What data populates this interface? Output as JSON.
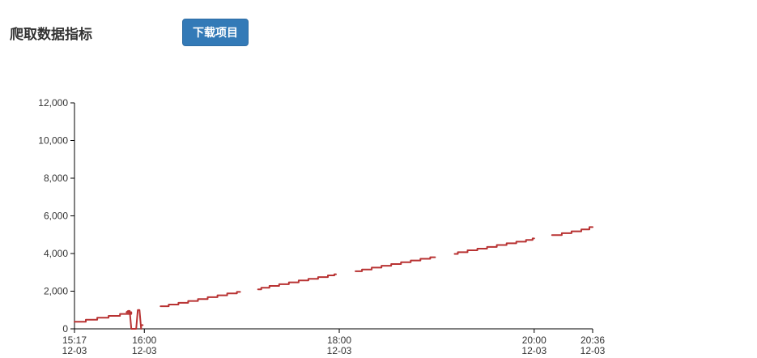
{
  "header": {
    "title": "爬取数据指标",
    "download_label": "下载项目"
  },
  "colors": {
    "accent": "#337ab7",
    "series": "#b83232"
  },
  "chart_data": {
    "type": "line",
    "title": "",
    "xlabel": "",
    "ylabel": "",
    "x_range_minutes": [
      0,
      319
    ],
    "ylim": [
      0,
      12000
    ],
    "y_ticks": [
      {
        "value": 0,
        "label": "0"
      },
      {
        "value": 2000,
        "label": "2,000"
      },
      {
        "value": 4000,
        "label": "4,000"
      },
      {
        "value": 6000,
        "label": "6,000"
      },
      {
        "value": 8000,
        "label": "8,000"
      },
      {
        "value": 10000,
        "label": "10,000"
      },
      {
        "value": 12000,
        "label": "12,000"
      }
    ],
    "x_ticks": [
      {
        "t": 0,
        "time": "15:17",
        "date": "12-03"
      },
      {
        "t": 43,
        "time": "16:00",
        "date": "12-03"
      },
      {
        "t": 163,
        "time": "18:00",
        "date": "12-03"
      },
      {
        "t": 283,
        "time": "20:00",
        "date": "12-03"
      },
      {
        "t": 319,
        "time": "20:36",
        "date": "12-03"
      }
    ],
    "segments": [
      [
        [
          0,
          380
        ],
        [
          7,
          380
        ],
        [
          7,
          480
        ],
        [
          14,
          480
        ],
        [
          14,
          590
        ],
        [
          21,
          590
        ],
        [
          21,
          690
        ],
        [
          28,
          690
        ],
        [
          28,
          790
        ],
        [
          35,
          790
        ],
        [
          35,
          880
        ],
        [
          32,
          880
        ],
        [
          33,
          950
        ],
        [
          34,
          950
        ],
        [
          35,
          0
        ],
        [
          38,
          0
        ],
        [
          39,
          1000
        ],
        [
          40,
          1000
        ],
        [
          41,
          0
        ],
        [
          41,
          200
        ],
        [
          42,
          200
        ]
      ],
      [
        [
          53,
          1200
        ],
        [
          58,
          1200
        ],
        [
          58,
          1290
        ],
        [
          64,
          1290
        ],
        [
          64,
          1380
        ],
        [
          70,
          1380
        ],
        [
          70,
          1480
        ],
        [
          76,
          1480
        ],
        [
          76,
          1580
        ],
        [
          82,
          1580
        ],
        [
          82,
          1680
        ],
        [
          88,
          1680
        ],
        [
          88,
          1780
        ],
        [
          94,
          1780
        ],
        [
          94,
          1880
        ],
        [
          100,
          1880
        ],
        [
          100,
          1960
        ],
        [
          102,
          1960
        ]
      ],
      [
        [
          113,
          2100
        ],
        [
          115,
          2100
        ],
        [
          115,
          2180
        ],
        [
          120,
          2180
        ],
        [
          120,
          2280
        ],
        [
          126,
          2280
        ],
        [
          126,
          2370
        ],
        [
          132,
          2370
        ],
        [
          132,
          2470
        ],
        [
          138,
          2470
        ],
        [
          138,
          2570
        ],
        [
          144,
          2570
        ],
        [
          144,
          2660
        ],
        [
          150,
          2660
        ],
        [
          150,
          2750
        ],
        [
          156,
          2750
        ],
        [
          156,
          2840
        ],
        [
          160,
          2840
        ],
        [
          160,
          2900
        ],
        [
          161,
          2900
        ]
      ],
      [
        [
          173,
          3060
        ],
        [
          177,
          3060
        ],
        [
          177,
          3150
        ],
        [
          183,
          3150
        ],
        [
          183,
          3250
        ],
        [
          189,
          3250
        ],
        [
          189,
          3350
        ],
        [
          195,
          3350
        ],
        [
          195,
          3440
        ],
        [
          201,
          3440
        ],
        [
          201,
          3540
        ],
        [
          207,
          3540
        ],
        [
          207,
          3630
        ],
        [
          213,
          3630
        ],
        [
          213,
          3720
        ],
        [
          219,
          3720
        ],
        [
          219,
          3800
        ],
        [
          222,
          3800
        ]
      ],
      [
        [
          234,
          3980
        ],
        [
          236,
          3980
        ],
        [
          236,
          4070
        ],
        [
          242,
          4070
        ],
        [
          242,
          4170
        ],
        [
          248,
          4170
        ],
        [
          248,
          4260
        ],
        [
          254,
          4260
        ],
        [
          254,
          4350
        ],
        [
          260,
          4350
        ],
        [
          260,
          4450
        ],
        [
          266,
          4450
        ],
        [
          266,
          4540
        ],
        [
          272,
          4540
        ],
        [
          272,
          4630
        ],
        [
          278,
          4630
        ],
        [
          278,
          4720
        ],
        [
          282,
          4720
        ],
        [
          282,
          4800
        ],
        [
          283,
          4800
        ]
      ],
      [
        [
          294,
          4980
        ],
        [
          300,
          4980
        ],
        [
          300,
          5080
        ],
        [
          306,
          5080
        ],
        [
          306,
          5180
        ],
        [
          312,
          5180
        ],
        [
          312,
          5280
        ],
        [
          317,
          5280
        ],
        [
          317,
          5400
        ],
        [
          319,
          5400
        ]
      ]
    ]
  }
}
